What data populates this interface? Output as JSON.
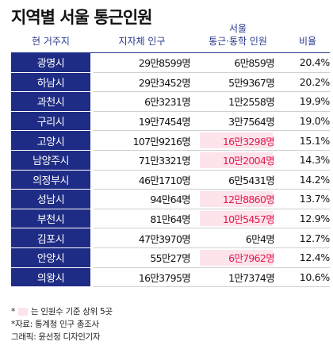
{
  "title": "지역별 서울 통근인원",
  "headers": {
    "city": "현 거주지",
    "population": "지자체 인구",
    "commuters_line1": "서울",
    "commuters_line2": "통근·통학 인원",
    "rate": "비율"
  },
  "colors": {
    "city_bg": "#1f2c85",
    "header_text": "#2a3a8f",
    "highlight_bg": "#fde3ea",
    "highlight_text": "#e01a4f"
  },
  "chart_data": {
    "type": "table",
    "columns": [
      "현 거주지",
      "지자체 인구",
      "서울 통근·통학 인원",
      "비율"
    ],
    "rows": [
      {
        "city": "광명시",
        "population": "29만8599명",
        "commuters": "6만859명",
        "rate": "20.4%",
        "highlight": false
      },
      {
        "city": "하남시",
        "population": "29만3452명",
        "commuters": "5만9367명",
        "rate": "20.2%",
        "highlight": false
      },
      {
        "city": "과천시",
        "population": "6만3231명",
        "commuters": "1만2558명",
        "rate": "19.9%",
        "highlight": false
      },
      {
        "city": "구리시",
        "population": "19만7454명",
        "commuters": "3만7564명",
        "rate": "19.0%",
        "highlight": false
      },
      {
        "city": "고양시",
        "population": "107만9216명",
        "commuters": "16만3298명",
        "rate": "15.1%",
        "highlight": true
      },
      {
        "city": "남양주시",
        "population": "71만3321명",
        "commuters": "10만2004명",
        "rate": "14.3%",
        "highlight": true
      },
      {
        "city": "의정부시",
        "population": "46만1710명",
        "commuters": "6만5431명",
        "rate": "14.2%",
        "highlight": false
      },
      {
        "city": "성남시",
        "population": "94만64명",
        "commuters": "12만8860명",
        "rate": "13.7%",
        "highlight": true
      },
      {
        "city": "부천시",
        "population": "81만64명",
        "commuters": "10만5457명",
        "rate": "12.9%",
        "highlight": true
      },
      {
        "city": "김포시",
        "population": "47만3970명",
        "commuters": "6만4명",
        "rate": "12.7%",
        "highlight": false
      },
      {
        "city": "안양시",
        "population": "55만27명",
        "commuters": "6만7962명",
        "rate": "12.4%",
        "highlight": true
      },
      {
        "city": "의왕시",
        "population": "16만3795명",
        "commuters": "1만7374명",
        "rate": "10.6%",
        "highlight": false
      }
    ]
  },
  "notes": {
    "legend_prefix": "*",
    "legend_text": "는 인원수 기준 상위 5곳",
    "source": "*자료: 통계청 인구 총조사",
    "credit": "그래픽: 윤선정 디자인기자"
  }
}
